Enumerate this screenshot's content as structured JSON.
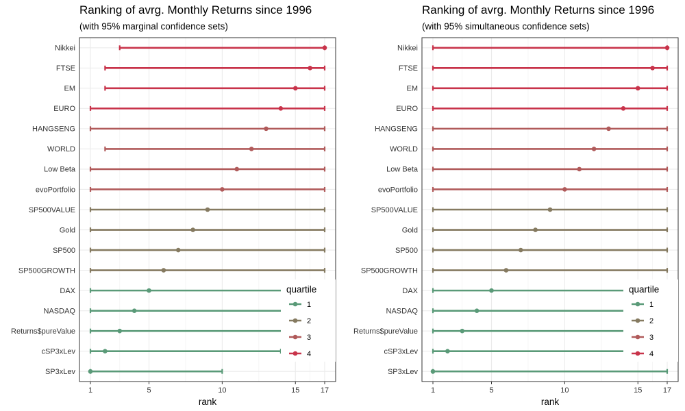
{
  "chart_data": [
    {
      "type": "range-dot",
      "title": "Ranking of avrg. Monthly Returns since 1996",
      "subtitle": "(with 95% marginal confidence sets)",
      "xlabel": "rank",
      "ylabel": "",
      "xlim": [
        1,
        17
      ],
      "xticks": [
        1,
        5,
        10,
        15,
        17
      ],
      "grid": true,
      "legend_position": "right",
      "categories": [
        "Nikkei",
        "FTSE",
        "EM",
        "EURO",
        "HANGSENG",
        "WORLD",
        "Low Beta",
        "evoPortfolio",
        "SP500VALUE",
        "Gold",
        "SP500",
        "SP500GROWTH",
        "DAX",
        "NASDAQ",
        "Returns$pureValue",
        "cSP3xLev",
        "SP3xLev"
      ],
      "points": [
        {
          "name": "Nikkei",
          "rank": 17,
          "lower": 3,
          "upper": 17,
          "quartile": "4"
        },
        {
          "name": "FTSE",
          "rank": 16,
          "lower": 2,
          "upper": 17,
          "quartile": "4"
        },
        {
          "name": "EM",
          "rank": 15,
          "lower": 2,
          "upper": 17,
          "quartile": "4"
        },
        {
          "name": "EURO",
          "rank": 14,
          "lower": 1,
          "upper": 17,
          "quartile": "4"
        },
        {
          "name": "HANGSENG",
          "rank": 13,
          "lower": 1,
          "upper": 17,
          "quartile": "3"
        },
        {
          "name": "WORLD",
          "rank": 12,
          "lower": 2,
          "upper": 17,
          "quartile": "3"
        },
        {
          "name": "Low Beta",
          "rank": 11,
          "lower": 1,
          "upper": 17,
          "quartile": "3"
        },
        {
          "name": "evoPortfolio",
          "rank": 10,
          "lower": 1,
          "upper": 17,
          "quartile": "3"
        },
        {
          "name": "SP500VALUE",
          "rank": 9,
          "lower": 1,
          "upper": 17,
          "quartile": "2"
        },
        {
          "name": "Gold",
          "rank": 8,
          "lower": 1,
          "upper": 17,
          "quartile": "2"
        },
        {
          "name": "SP500",
          "rank": 7,
          "lower": 1,
          "upper": 17,
          "quartile": "2"
        },
        {
          "name": "SP500GROWTH",
          "rank": 6,
          "lower": 1,
          "upper": 17,
          "quartile": "2"
        },
        {
          "name": "DAX",
          "rank": 5,
          "lower": 1,
          "upper": 17,
          "quartile": "1"
        },
        {
          "name": "NASDAQ",
          "rank": 4,
          "lower": 1,
          "upper": 17,
          "quartile": "1"
        },
        {
          "name": "Returns$pureValue",
          "rank": 3,
          "lower": 1,
          "upper": 17,
          "quartile": "1"
        },
        {
          "name": "cSP3xLev",
          "rank": 2,
          "lower": 1,
          "upper": 14,
          "quartile": "1"
        },
        {
          "name": "SP3xLev",
          "rank": 1,
          "lower": 1,
          "upper": 10,
          "quartile": "1"
        }
      ]
    },
    {
      "type": "range-dot",
      "title": "Ranking of avrg. Monthly Returns since 1996",
      "subtitle": "(with 95% simultaneous confidence sets)",
      "xlabel": "rank",
      "ylabel": "",
      "xlim": [
        1,
        17
      ],
      "xticks": [
        1,
        5,
        10,
        15,
        17
      ],
      "grid": true,
      "legend_position": "right",
      "categories": [
        "Nikkei",
        "FTSE",
        "EM",
        "EURO",
        "HANGSENG",
        "WORLD",
        "Low Beta",
        "evoPortfolio",
        "SP500VALUE",
        "Gold",
        "SP500",
        "SP500GROWTH",
        "DAX",
        "NASDAQ",
        "Returns$pureValue",
        "cSP3xLev",
        "SP3xLev"
      ],
      "points": [
        {
          "name": "Nikkei",
          "rank": 17,
          "lower": 1,
          "upper": 17,
          "quartile": "4"
        },
        {
          "name": "FTSE",
          "rank": 16,
          "lower": 1,
          "upper": 17,
          "quartile": "4"
        },
        {
          "name": "EM",
          "rank": 15,
          "lower": 1,
          "upper": 17,
          "quartile": "4"
        },
        {
          "name": "EURO",
          "rank": 14,
          "lower": 1,
          "upper": 17,
          "quartile": "4"
        },
        {
          "name": "HANGSENG",
          "rank": 13,
          "lower": 1,
          "upper": 17,
          "quartile": "3"
        },
        {
          "name": "WORLD",
          "rank": 12,
          "lower": 1,
          "upper": 17,
          "quartile": "3"
        },
        {
          "name": "Low Beta",
          "rank": 11,
          "lower": 1,
          "upper": 17,
          "quartile": "3"
        },
        {
          "name": "evoPortfolio",
          "rank": 10,
          "lower": 1,
          "upper": 17,
          "quartile": "3"
        },
        {
          "name": "SP500VALUE",
          "rank": 9,
          "lower": 1,
          "upper": 17,
          "quartile": "2"
        },
        {
          "name": "Gold",
          "rank": 8,
          "lower": 1,
          "upper": 17,
          "quartile": "2"
        },
        {
          "name": "SP500",
          "rank": 7,
          "lower": 1,
          "upper": 17,
          "quartile": "2"
        },
        {
          "name": "SP500GROWTH",
          "rank": 6,
          "lower": 1,
          "upper": 17,
          "quartile": "2"
        },
        {
          "name": "DAX",
          "rank": 5,
          "lower": 1,
          "upper": 17,
          "quartile": "1"
        },
        {
          "name": "NASDAQ",
          "rank": 4,
          "lower": 1,
          "upper": 17,
          "quartile": "1"
        },
        {
          "name": "Returns$pureValue",
          "rank": 3,
          "lower": 1,
          "upper": 17,
          "quartile": "1"
        },
        {
          "name": "cSP3xLev",
          "rank": 2,
          "lower": 1,
          "upper": 17,
          "quartile": "1"
        },
        {
          "name": "SP3xLev",
          "rank": 1,
          "lower": 1,
          "upper": 17,
          "quartile": "1"
        }
      ]
    }
  ],
  "legend": {
    "title": "quartile",
    "items": [
      {
        "label": "1",
        "color": "#5a9a78"
      },
      {
        "label": "2",
        "color": "#857a60"
      },
      {
        "label": "3",
        "color": "#b05a5a"
      },
      {
        "label": "4",
        "color": "#c8334a"
      }
    ]
  },
  "colors": {
    "panel_border": "#333333",
    "grid_major": "#ebebeb",
    "grid_minor": "#f4f4f4"
  }
}
